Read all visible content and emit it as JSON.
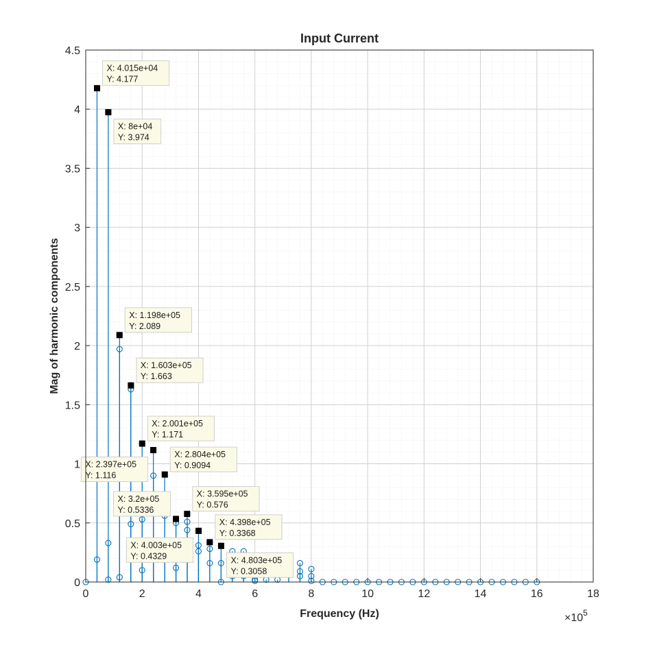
{
  "chart_data": {
    "type": "stem",
    "title": "Input Current",
    "xlabel": "Frequency (Hz)",
    "ylabel": "Mag of harmonic components",
    "x_exponent_label": "×10",
    "x_exponent_power": "5",
    "x_scale": 100000,
    "xlim": [
      0,
      1800000
    ],
    "ylim": [
      0,
      4.5
    ],
    "x_ticks": [
      0,
      2,
      4,
      6,
      8,
      10,
      12,
      14,
      16,
      18
    ],
    "y_ticks": [
      "0",
      "0.5",
      "1",
      "1.5",
      "2",
      "2.5",
      "3",
      "3.5",
      "4",
      "4.5"
    ],
    "grid": true,
    "minor_grid": true,
    "series_color": "#0072bd",
    "series": [
      {
        "x": [
          0,
          40000,
          80000,
          120000,
          160000,
          200000,
          240000,
          280000,
          320000,
          360000,
          400000,
          440000,
          480000,
          520000,
          560000,
          600000,
          640000,
          680000,
          720000,
          760000,
          800000,
          840000,
          880000,
          920000,
          960000,
          1000000,
          1040000,
          1080000,
          1120000,
          1160000,
          1200000,
          1240000,
          1280000,
          1320000,
          1360000,
          1400000,
          1440000,
          1480000,
          1520000,
          1560000,
          1600000
        ],
        "y": [
          0,
          4.177,
          3.974,
          2.089,
          1.663,
          1.171,
          1.116,
          0.9094,
          0.5336,
          0.576,
          0.4329,
          0.3368,
          0.3058,
          0.26,
          0.26,
          0.02,
          0.02,
          0.02,
          0.08,
          0.16,
          0.11,
          0,
          0,
          0,
          0,
          0,
          0,
          0,
          0,
          0,
          0,
          0,
          0,
          0,
          0,
          0,
          0,
          0,
          0,
          0,
          0
        ]
      },
      {
        "x": [
          40000,
          80000,
          120000,
          160000,
          200000,
          240000,
          280000,
          320000,
          360000,
          400000,
          440000,
          480000,
          520000,
          560000,
          600000,
          720000,
          760000,
          800000
        ],
        "y": [
          0.19,
          0.33,
          1.97,
          1.63,
          0.53,
          0.9,
          0.56,
          0.5,
          0.51,
          0.31,
          0.28,
          0.16,
          0.05,
          0.05,
          0.01,
          0.07,
          0.09,
          0.05
        ]
      },
      {
        "x": [
          80000,
          120000,
          160000,
          200000,
          240000,
          280000,
          320000,
          360000,
          400000,
          440000,
          480000,
          760000,
          800000
        ],
        "y": [
          0.02,
          0.04,
          0.49,
          0.1,
          0.21,
          0.27,
          0.12,
          0.44,
          0.26,
          0.16,
          0.0,
          0.05,
          0.01
        ]
      }
    ],
    "datatips": [
      {
        "x": 40150,
        "y": 4.177,
        "line1": "X: 4.015e+04",
        "line2": "Y: 4.177",
        "pos": "right-up"
      },
      {
        "x": 80000,
        "y": 3.974,
        "line1": "X: 8e+04",
        "line2": "Y: 3.974",
        "pos": "right-down"
      },
      {
        "x": 119800,
        "y": 2.089,
        "line1": "X: 1.198e+05",
        "line2": "Y: 2.089",
        "pos": "right-up"
      },
      {
        "x": 160300,
        "y": 1.663,
        "line1": "X: 1.603e+05",
        "line2": "Y: 1.663",
        "pos": "right-up"
      },
      {
        "x": 200100,
        "y": 1.171,
        "line1": "X: 2.001e+05",
        "line2": "Y: 1.171",
        "pos": "right-up"
      },
      {
        "x": 239700,
        "y": 1.116,
        "line1": "X: 2.397e+05",
        "line2": "Y: 1.116",
        "pos": "left-down"
      },
      {
        "x": 280400,
        "y": 0.9094,
        "line1": "X: 2.804e+05",
        "line2": "Y: 0.9094",
        "pos": "right-up"
      },
      {
        "x": 320000,
        "y": 0.5336,
        "line1": "X: 3.2e+05",
        "line2": "Y: 0.5336",
        "pos": "left-up"
      },
      {
        "x": 359500,
        "y": 0.576,
        "line1": "X: 3.595e+05",
        "line2": "Y: 0.576",
        "pos": "right-up"
      },
      {
        "x": 400300,
        "y": 0.4329,
        "line1": "X: 4.003e+05",
        "line2": "Y: 0.4329",
        "pos": "left-down"
      },
      {
        "x": 439800,
        "y": 0.3368,
        "line1": "X: 4.398e+05",
        "line2": "Y: 0.3368",
        "pos": "right-up"
      },
      {
        "x": 480300,
        "y": 0.3058,
        "line1": "X: 4.803e+05",
        "line2": "Y: 0.3058",
        "pos": "right-down"
      }
    ]
  }
}
